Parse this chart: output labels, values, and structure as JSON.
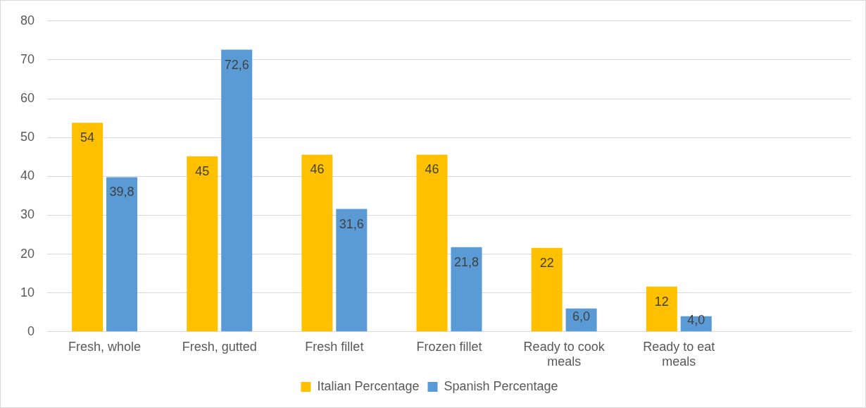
{
  "chart_data": {
    "type": "bar",
    "categories": [
      "Fresh, whole",
      "Fresh, gutted",
      "Fresh fillet",
      "Frozen fillet",
      "Ready to cook meals",
      "Ready to eat meals",
      null
    ],
    "series": [
      {
        "name": "Italian Percentage",
        "color": "#ffc000",
        "values": [
          53.8,
          45.2,
          45.6,
          45.6,
          21.6,
          11.6,
          null
        ],
        "value_labels": [
          "54",
          "45",
          "46",
          "46",
          "22",
          "12",
          null
        ]
      },
      {
        "name": "Spanish Percentage",
        "color": "#5b9bd5",
        "values": [
          39.8,
          72.6,
          31.6,
          21.8,
          6.0,
          4.0,
          null
        ],
        "value_labels": [
          "39,8",
          "72,6",
          "31,6",
          "21,8",
          "6,0",
          "4,0",
          null
        ]
      }
    ],
    "ylim": [
      0,
      80
    ],
    "yticks": [
      0,
      10,
      20,
      30,
      40,
      50,
      60,
      70,
      80
    ],
    "grid": "y",
    "legend": "bottom"
  }
}
